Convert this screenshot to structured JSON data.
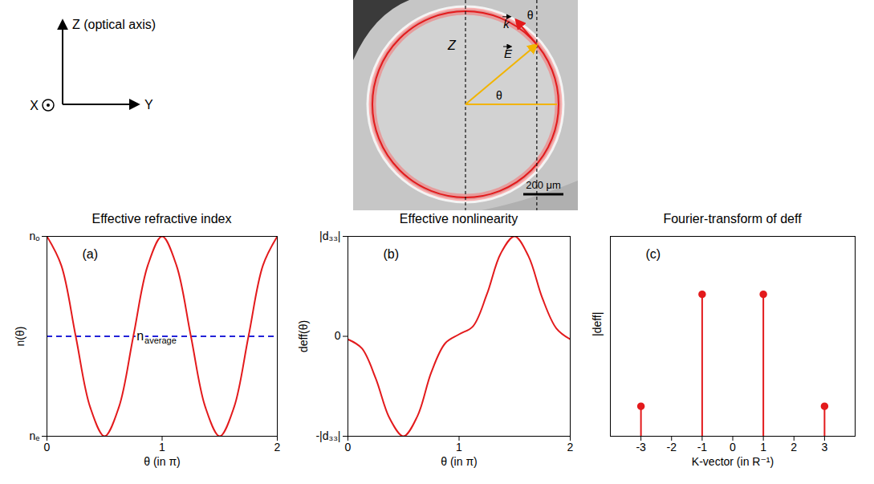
{
  "diagram": {
    "axes": {
      "z": "Z (optical axis)",
      "x": "X",
      "y": "Y"
    },
    "micrograph": {
      "axis": "Z",
      "k": "k",
      "E": "E",
      "angle": "θ",
      "scale_bar": "200 μm"
    }
  },
  "chart_data": [
    {
      "type": "line",
      "title": "Effective refractive index",
      "panel_label": "(a)",
      "xlabel": "θ (in π)",
      "ylabel": "n(θ)",
      "x": [
        0,
        0.125,
        0.25,
        0.375,
        0.5,
        0.625,
        0.75,
        0.875,
        1,
        1.125,
        1.25,
        1.375,
        1.5,
        1.625,
        1.75,
        1.875,
        2
      ],
      "values": [
        1,
        0.854,
        0.5,
        0.146,
        0,
        0.146,
        0.5,
        0.854,
        1,
        0.854,
        0.5,
        0.146,
        0,
        0.146,
        0.5,
        0.854,
        1
      ],
      "color": "#e31a1c",
      "xlim": [
        0,
        2
      ],
      "xticks": [
        0,
        1,
        2
      ],
      "ylim": [
        0,
        1
      ],
      "yticks": [
        {
          "value": 0,
          "label": "nₑ"
        },
        {
          "value": 1,
          "label": "nₒ"
        }
      ],
      "annotations": [
        {
          "text": "n",
          "subscript": "average",
          "y": 0.5,
          "color": "#2323d8",
          "line_style": "dashed"
        }
      ]
    },
    {
      "type": "line",
      "title": "Effective nonlinearity",
      "panel_label": "(b)",
      "xlabel": "θ (in π)",
      "ylabel": "deff(θ)",
      "x": [
        0,
        0.125,
        0.25,
        0.375,
        0.5,
        0.625,
        0.75,
        0.875,
        1,
        1.125,
        1.25,
        1.375,
        1.5,
        1.625,
        1.75,
        1.875,
        2
      ],
      "values": [
        -0.03,
        -0.12,
        -0.42,
        -0.82,
        -1,
        -0.8,
        -0.36,
        -0.07,
        0.02,
        0.1,
        0.42,
        0.83,
        1,
        0.8,
        0.38,
        0.08,
        -0.03
      ],
      "color": "#e31a1c",
      "xlim": [
        0,
        2
      ],
      "xticks": [
        0,
        1,
        2
      ],
      "ylim": [
        -1,
        1
      ],
      "yticks": [
        {
          "value": -1,
          "label": "-|d₃₃|"
        },
        0,
        {
          "value": 1,
          "label": "|d₃₃|"
        }
      ]
    },
    {
      "type": "stem",
      "title": "Fourier-transform of deff",
      "panel_label": "(c)",
      "xlabel": "K-vector (in R⁻¹)",
      "ylabel": "|deff|",
      "x": [
        -3,
        -1,
        1,
        3
      ],
      "values": [
        0.15,
        0.71,
        0.71,
        0.15
      ],
      "color": "#e31a1c",
      "marker": "circle",
      "xlim": [
        -4,
        4
      ],
      "xticks": [
        -3,
        -2,
        -1,
        0,
        1,
        2,
        3
      ],
      "ylim": [
        0,
        1
      ],
      "tick_labels": "x"
    }
  ]
}
